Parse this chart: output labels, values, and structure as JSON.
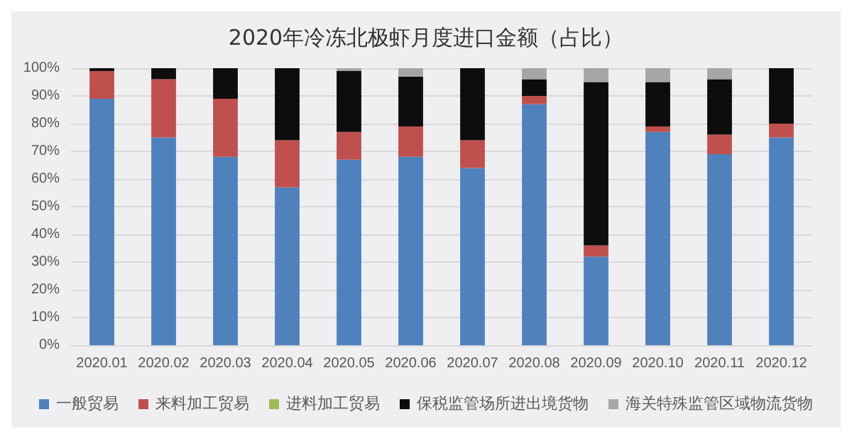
{
  "chart_data": {
    "type": "bar",
    "title": "2020年冷冻北极虾月度进口金额（占比）",
    "stacked": true,
    "categories": [
      "2020.01",
      "2020.02",
      "2020.03",
      "2020.04",
      "2020.05",
      "2020.06",
      "2020.07",
      "2020.08",
      "2020.09",
      "2020.10",
      "2020.11",
      "2020.12"
    ],
    "series": [
      {
        "name": "一般贸易",
        "color": "#4f81bd",
        "values": [
          89,
          75,
          68,
          57,
          67,
          68,
          64,
          87,
          32,
          77,
          69,
          75
        ]
      },
      {
        "name": "来料加工贸易",
        "color": "#c0504d",
        "values": [
          10,
          21,
          21,
          17,
          10,
          11,
          10,
          3,
          4,
          2,
          7,
          5
        ]
      },
      {
        "name": "进料加工贸易",
        "color": "#9bbb59",
        "values": [
          0,
          0,
          0,
          0,
          0,
          0,
          0,
          0,
          0,
          0,
          0,
          0
        ]
      },
      {
        "name": "保税监管场所进出境货物",
        "color": "#0d0d0d",
        "values": [
          1,
          4,
          11,
          26,
          22,
          18,
          26,
          6,
          59,
          16,
          20,
          20
        ]
      },
      {
        "name": "海关特殊监管区域物流货物",
        "color": "#a6a6a6",
        "values": [
          0,
          0,
          0,
          0,
          1,
          3,
          0,
          4,
          5,
          5,
          4,
          0
        ]
      }
    ],
    "ylim": [
      0,
      100
    ],
    "yticks": [
      {
        "value": 0,
        "label": "0%"
      },
      {
        "value": 10,
        "label": "10%"
      },
      {
        "value": 20,
        "label": "20%"
      },
      {
        "value": 30,
        "label": "30%"
      },
      {
        "value": 40,
        "label": "40%"
      },
      {
        "value": 50,
        "label": "50%"
      },
      {
        "value": 60,
        "label": "60%"
      },
      {
        "value": 70,
        "label": "70%"
      },
      {
        "value": 80,
        "label": "80%"
      },
      {
        "value": 90,
        "label": "90%"
      },
      {
        "value": 100,
        "label": "100%"
      }
    ],
    "grid": "y",
    "legend": "bottom"
  }
}
